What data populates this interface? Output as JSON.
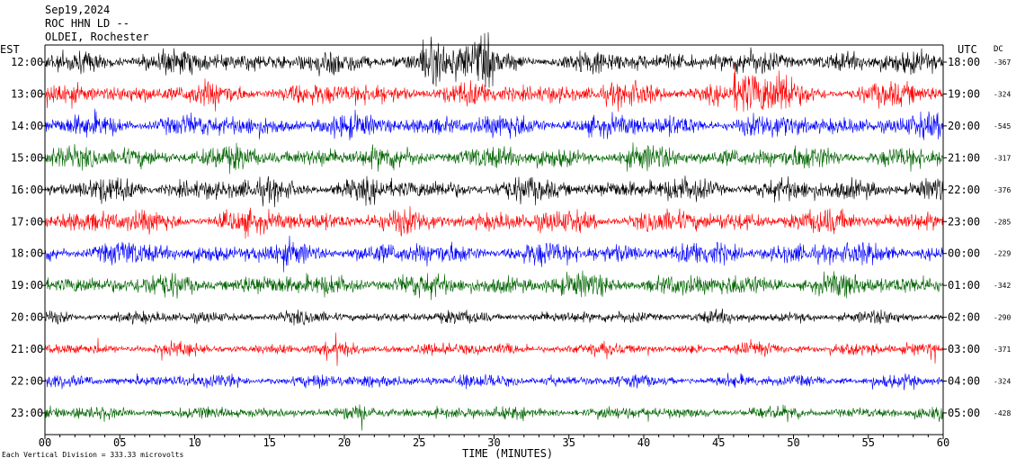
{
  "header": {
    "date": "Sep19,2024",
    "station": "ROC HHN LD --",
    "location": "OLDEI, Rochester",
    "left_tz": "EST",
    "right_tz": "UTC",
    "dc_label": "DC"
  },
  "footer": {
    "note": "Each Vertical Division = 333.33 microvolts"
  },
  "chart_data": {
    "type": "line",
    "title": "",
    "xlabel": "TIME (MINUTES)",
    "ylabel": "",
    "xlim": [
      0,
      60
    ],
    "x_ticks": [
      "00",
      "05",
      "10",
      "15",
      "20",
      "25",
      "30",
      "35",
      "40",
      "45",
      "50",
      "55",
      "60"
    ],
    "colors": [
      "#000000",
      "#ff0000",
      "#0000ff",
      "#006400"
    ],
    "rows": [
      {
        "est": "12:00",
        "utc": "18:00",
        "dc": "-367",
        "color": "#000000"
      },
      {
        "est": "13:00",
        "utc": "19:00",
        "dc": "-324",
        "color": "#ff0000"
      },
      {
        "est": "14:00",
        "utc": "20:00",
        "dc": "-545",
        "color": "#0000ff"
      },
      {
        "est": "15:00",
        "utc": "21:00",
        "dc": "-317",
        "color": "#006400"
      },
      {
        "est": "16:00",
        "utc": "22:00",
        "dc": "-376",
        "color": "#000000"
      },
      {
        "est": "17:00",
        "utc": "23:00",
        "dc": "-285",
        "color": "#ff0000"
      },
      {
        "est": "18:00",
        "utc": "00:00",
        "dc": "-229",
        "color": "#0000ff"
      },
      {
        "est": "19:00",
        "utc": "01:00",
        "dc": "-342",
        "color": "#006400"
      },
      {
        "est": "20:00",
        "utc": "02:00",
        "dc": "-290",
        "color": "#000000"
      },
      {
        "est": "21:00",
        "utc": "03:00",
        "dc": "-371",
        "color": "#ff0000"
      },
      {
        "est": "22:00",
        "utc": "04:00",
        "dc": "-324",
        "color": "#0000ff"
      },
      {
        "est": "23:00",
        "utc": "05:00",
        "dc": "-428",
        "color": "#006400"
      }
    ]
  }
}
